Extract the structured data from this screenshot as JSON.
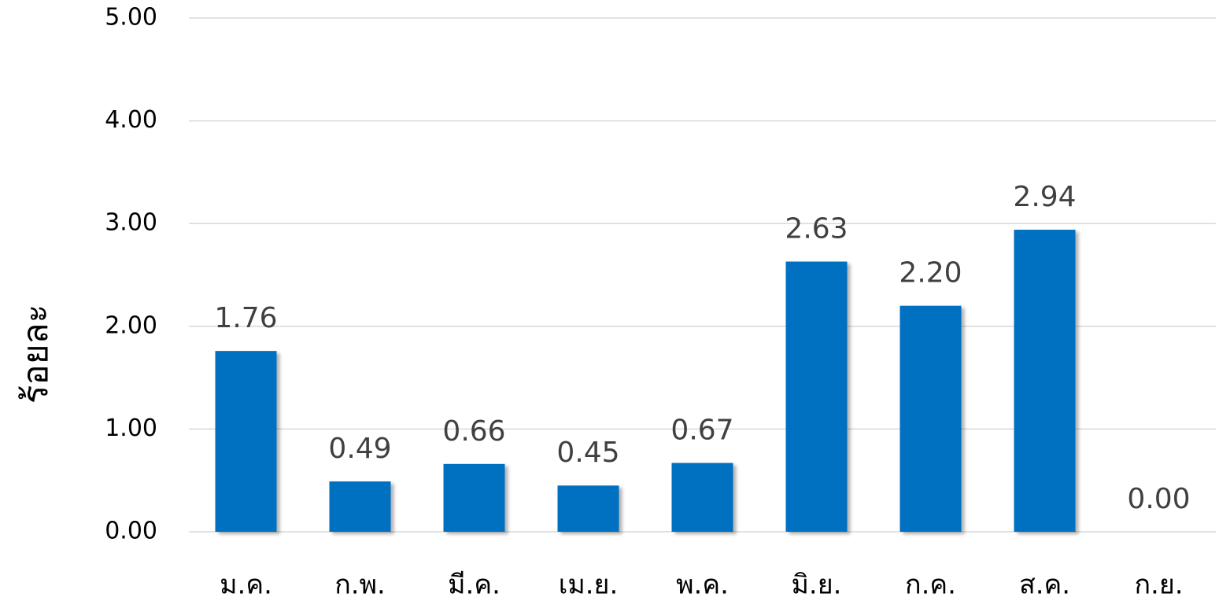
{
  "chart_data": {
    "type": "bar",
    "y_label": "ร้อยละ",
    "categories": [
      "ม.ค.",
      "ก.พ.",
      "มี.ค.",
      "เม.ย.",
      "พ.ค.",
      "มิ.ย.",
      "ก.ค.",
      "ส.ค.",
      "ก.ย."
    ],
    "values": [
      1.76,
      0.49,
      0.66,
      0.45,
      0.67,
      2.63,
      2.2,
      2.94,
      0
    ],
    "value_labels": [
      "1.76",
      "0.49",
      "0.66",
      "0.45",
      "0.67",
      "2.63",
      "2.20",
      "2.94",
      "0.00"
    ],
    "color": "#0070c0",
    "ylim": [
      0,
      5
    ],
    "yticks": [
      {
        "value": 0,
        "label": "0.00"
      },
      {
        "value": 1,
        "label": "1.00"
      },
      {
        "value": 2,
        "label": "2.00"
      },
      {
        "value": 3,
        "label": "3.00"
      },
      {
        "value": 4,
        "label": "4.00"
      },
      {
        "value": 5,
        "label": "5.00"
      }
    ],
    "grid": true
  }
}
